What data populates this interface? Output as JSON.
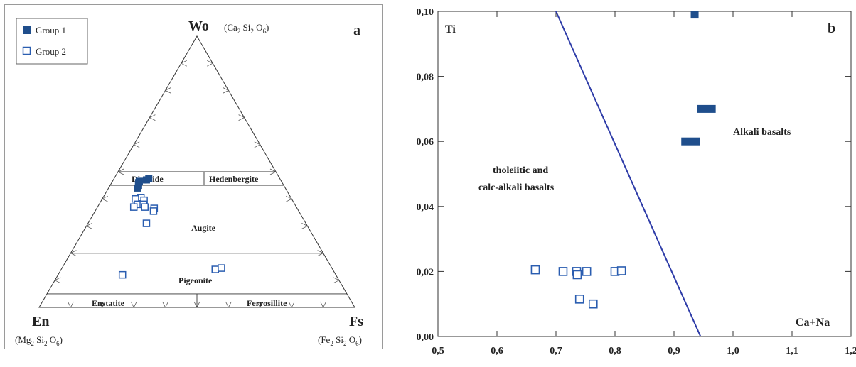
{
  "panel_a": {
    "panel_letter": "a",
    "legend": [
      {
        "label": "Group 1",
        "marker": "filled-square"
      },
      {
        "label": "Group 2",
        "marker": "open-square"
      }
    ],
    "vertices": {
      "top": {
        "label": "Wo",
        "formula_prefix": "(Ca",
        "formula_mid1": "Si",
        "formula_mid2": "O",
        "formula_suffix": ")",
        "sub1": "2",
        "sub2": "2",
        "sub3": "6"
      },
      "left": {
        "label": "En",
        "formula_prefix": "(Mg",
        "formula_mid1": "Si",
        "formula_mid2": "O",
        "formula_suffix": ")",
        "sub1": "2",
        "sub2": "2",
        "sub3": "6"
      },
      "right": {
        "label": "Fs",
        "formula_prefix": "(Fe",
        "formula_mid1": "Si",
        "formula_mid2": "O",
        "formula_suffix": ")",
        "sub1": "2",
        "sub2": "2",
        "sub3": "6"
      }
    },
    "fields": {
      "diopside": "Diopside",
      "hedenbergite": "Hedenbergite",
      "augite": "Augite",
      "pigeonite": "Pigeonite",
      "enstatite": "Enstatite",
      "ferrosillite": "Ferrosillite"
    }
  },
  "chart_data": [
    {
      "type": "ternary",
      "components": [
        "Wo",
        "En",
        "Fs"
      ],
      "boundaries_wo_percent": [
        5,
        20,
        45,
        50
      ],
      "series": [
        {
          "name": "Group 1",
          "marker": "filled-square",
          "color": "#1f4e8c",
          "points": [
            {
              "wo": 46.5,
              "en": 45.0,
              "fs": 8.5
            },
            {
              "wo": 46.0,
              "en": 45.5,
              "fs": 8.5
            },
            {
              "wo": 45.0,
              "en": 46.0,
              "fs": 9.0
            },
            {
              "wo": 44.0,
              "en": 46.8,
              "fs": 9.2
            },
            {
              "wo": 47.0,
              "en": 42.5,
              "fs": 10.5
            },
            {
              "wo": 47.5,
              "en": 41.5,
              "fs": 11.0
            }
          ]
        },
        {
          "name": "Group 2",
          "marker": "open-square",
          "color": "#2a5db0",
          "points": [
            {
              "wo": 40.5,
              "en": 47.5,
              "fs": 12.0
            },
            {
              "wo": 40.0,
              "en": 49.5,
              "fs": 10.5
            },
            {
              "wo": 39.5,
              "en": 47.0,
              "fs": 13.5
            },
            {
              "wo": 38.0,
              "en": 49.8,
              "fs": 12.2
            },
            {
              "wo": 38.0,
              "en": 48.0,
              "fs": 14.0
            },
            {
              "wo": 37.0,
              "en": 51.5,
              "fs": 11.5
            },
            {
              "wo": 37.0,
              "en": 48.0,
              "fs": 15.0
            },
            {
              "wo": 36.5,
              "en": 45.3,
              "fs": 18.2
            },
            {
              "wo": 35.5,
              "en": 46.0,
              "fs": 18.5
            },
            {
              "wo": 31.0,
              "en": 50.5,
              "fs": 18.5
            },
            {
              "wo": 12.0,
              "en": 67.6,
              "fs": 20.4
            },
            {
              "wo": 14.0,
              "en": 37.2,
              "fs": 48.8
            },
            {
              "wo": 14.5,
              "en": 35.0,
              "fs": 50.5
            }
          ]
        }
      ]
    },
    {
      "type": "scatter",
      "panel_letter": "b",
      "ylabel": "Ti",
      "xlabel": "Ca+Na",
      "xlim": [
        0.5,
        1.2
      ],
      "ylim": [
        0.0,
        0.1
      ],
      "xticks": [
        "0,5",
        "0,6",
        "0,7",
        "0,8",
        "0,9",
        "1,0",
        "1,1",
        "1,2"
      ],
      "yticks": [
        "0,00",
        "0,02",
        "0,04",
        "0,06",
        "0,08",
        "0,10"
      ],
      "divider": {
        "from": [
          0.7,
          0.1
        ],
        "to": [
          0.945,
          0.0
        ],
        "color": "#2e3ca8"
      },
      "region_labels": {
        "tholeiitic_line1": "tholeiitic and",
        "tholeiitic_line2": "calc-alkali basalts",
        "alkali": "Alkali basalts"
      },
      "series": [
        {
          "name": "Group 1",
          "marker": "filled-rect",
          "color": "#1f4e8c",
          "points": [
            {
              "x": 0.935,
              "y": 0.099
            },
            {
              "x": 0.955,
              "y": 0.07
            },
            {
              "x": 0.928,
              "y": 0.06
            }
          ]
        },
        {
          "name": "Group 2",
          "marker": "open-square",
          "color": "#2a5db0",
          "points": [
            {
              "x": 0.665,
              "y": 0.0205
            },
            {
              "x": 0.712,
              "y": 0.02
            },
            {
              "x": 0.735,
              "y": 0.02
            },
            {
              "x": 0.736,
              "y": 0.019
            },
            {
              "x": 0.752,
              "y": 0.02
            },
            {
              "x": 0.8,
              "y": 0.02
            },
            {
              "x": 0.811,
              "y": 0.0202
            },
            {
              "x": 0.74,
              "y": 0.0115
            },
            {
              "x": 0.763,
              "y": 0.01
            }
          ]
        }
      ]
    }
  ]
}
